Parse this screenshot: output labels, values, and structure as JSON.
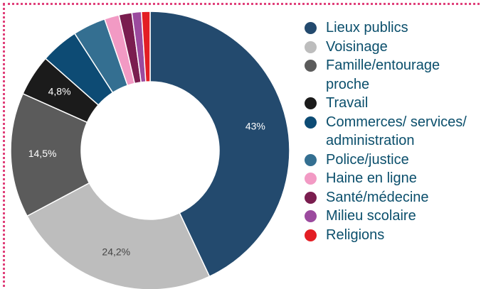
{
  "chart_data": {
    "type": "pie",
    "donut": true,
    "categories": [
      "Lieux publics",
      "Voisinage",
      "Famille/entourage proche",
      "Travail",
      "Commerces/ services/ administration",
      "Police/justice",
      "Haine en ligne",
      "Santé/médecine",
      "Milieu scolaire",
      "Religions"
    ],
    "values": [
      43,
      24.2,
      14.5,
      4.8,
      4.4,
      3.8,
      1.7,
      1.5,
      1.1,
      1.0
    ],
    "value_labels": [
      "43%",
      "24,2%",
      "14,5%",
      "4,8%",
      null,
      null,
      null,
      null,
      null,
      null
    ],
    "colors": [
      "#234a6e",
      "#bdbdbd",
      "#5b5b5b",
      "#1b1b1b",
      "#0d4b74",
      "#346f91",
      "#f29ac4",
      "#7a1d4f",
      "#9b4a9e",
      "#e31e24"
    ],
    "legend": "right"
  }
}
